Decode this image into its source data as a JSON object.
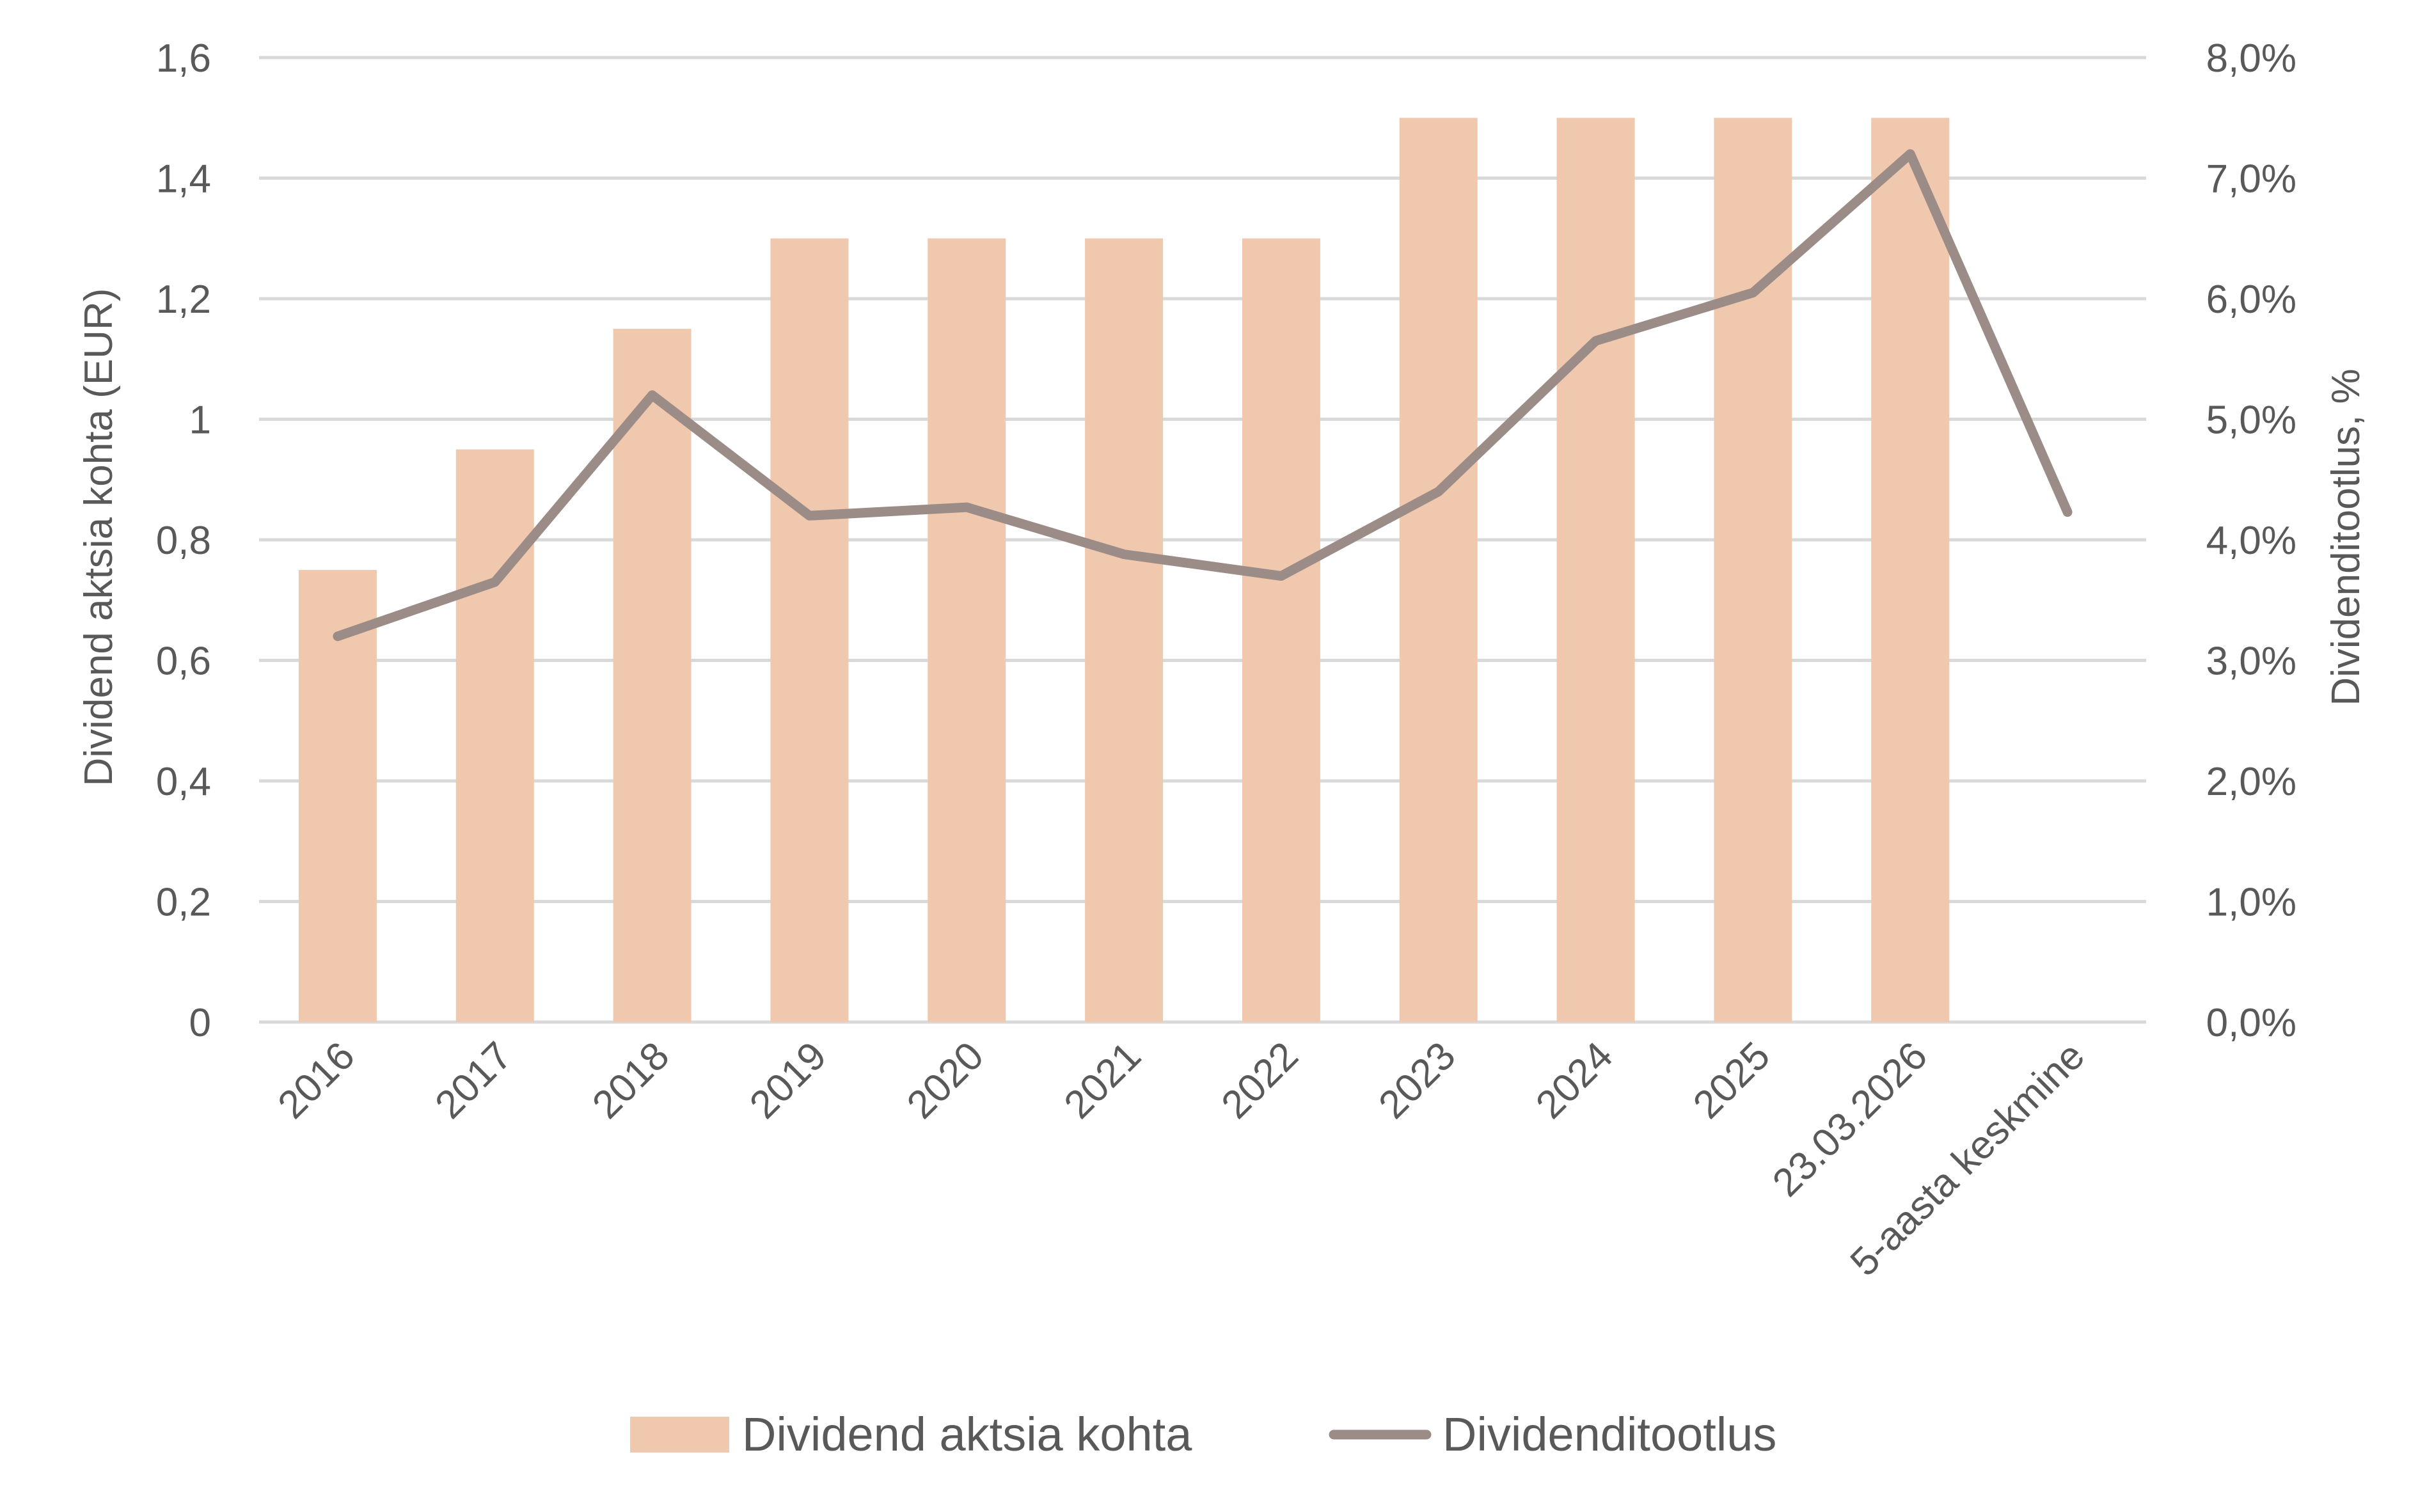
{
  "chart_data": {
    "type": "bar",
    "categories": [
      "2016",
      "2017",
      "2018",
      "2019",
      "2020",
      "2021",
      "2022",
      "2023",
      "2024",
      "2025",
      "23.03.2026",
      "5-aasta keskmine"
    ],
    "series": [
      {
        "name": "Dividend aktsia kohta",
        "type": "bar",
        "axis": "left",
        "values": [
          0.75,
          0.95,
          1.15,
          1.3,
          1.3,
          1.3,
          1.3,
          1.5,
          1.5,
          1.5,
          1.5,
          null
        ],
        "color": "#efc8ae"
      },
      {
        "name": "Dividenditootlus",
        "type": "line",
        "axis": "right",
        "values": [
          3.2,
          3.65,
          5.2,
          4.2,
          4.27,
          3.88,
          3.7,
          4.4,
          5.65,
          6.05,
          7.2,
          4.23
        ],
        "color": "#9c8c88"
      }
    ],
    "ylabel": "Dividend aktsia kohta (EUR)",
    "ylabel_right": "Dividenditootlus, %",
    "ylim": [
      0,
      1.6
    ],
    "ylim_right": [
      0,
      8
    ],
    "yticks": [
      "0",
      "0,2",
      "0,4",
      "0,6",
      "0,8",
      "1",
      "1,2",
      "1,4",
      "1,6"
    ],
    "yticks_right": [
      "0,0%",
      "1,0%",
      "2,0%",
      "3,0%",
      "4,0%",
      "5,0%",
      "6,0%",
      "7,0%",
      "8,0%"
    ],
    "grid": true,
    "legend": "bottom"
  }
}
